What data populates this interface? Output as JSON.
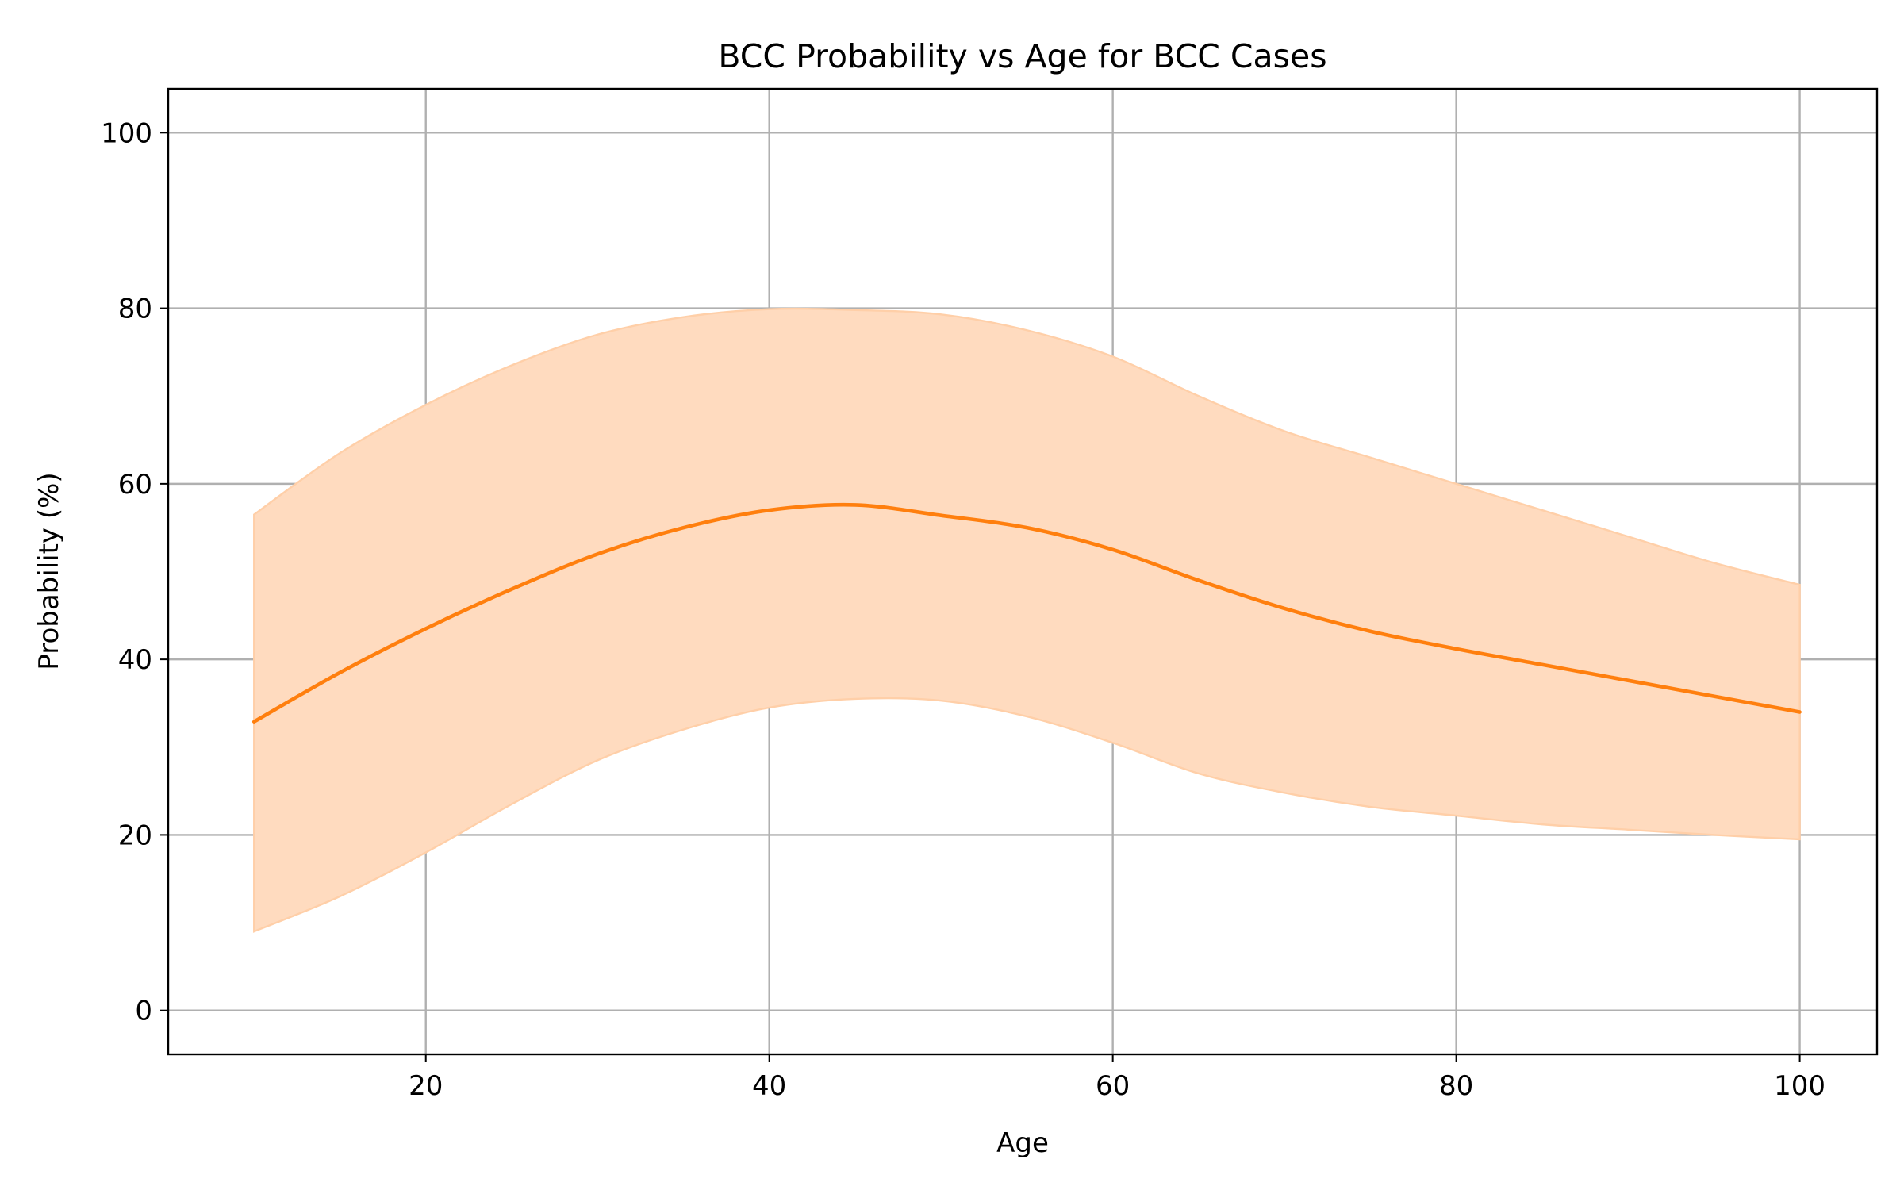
{
  "chart_data": {
    "type": "line",
    "title": "BCC Probability vs Age for BCC Cases",
    "xlabel": "Age",
    "ylabel": "Probability (%)",
    "xlim": [
      5,
      104.5
    ],
    "ylim": [
      -5,
      105
    ],
    "x_ticks": [
      20,
      40,
      60,
      80,
      100
    ],
    "y_ticks": [
      0,
      20,
      40,
      60,
      80,
      100
    ],
    "grid": true,
    "colors": {
      "line": "#ff7f0e",
      "band": "#ffdbbf",
      "band_edge": "#ffcfa8",
      "grid": "#b0b0b0"
    },
    "series": [
      {
        "x": [
          10,
          15,
          20,
          25,
          30,
          35,
          40,
          45,
          50,
          55,
          60,
          65,
          70,
          75,
          80,
          85,
          90,
          95,
          100
        ],
        "y": [
          32.9,
          38.5,
          43.5,
          48.0,
          52.0,
          55.0,
          57.0,
          57.6,
          56.4,
          55.0,
          52.5,
          49.0,
          45.8,
          43.2,
          41.2,
          39.4,
          37.6,
          35.8,
          34.0
        ],
        "lower": [
          9.0,
          13.0,
          18.0,
          23.5,
          28.5,
          32.0,
          34.5,
          35.5,
          35.3,
          33.5,
          30.5,
          27.0,
          24.8,
          23.2,
          22.2,
          21.2,
          20.6,
          20.0,
          19.5
        ],
        "upper": [
          56.5,
          63.5,
          69.0,
          73.5,
          77.0,
          79.0,
          79.9,
          79.8,
          79.3,
          77.5,
          74.5,
          70.0,
          66.0,
          63.0,
          60.0,
          57.0,
          54.0,
          51.0,
          48.5
        ]
      }
    ]
  }
}
